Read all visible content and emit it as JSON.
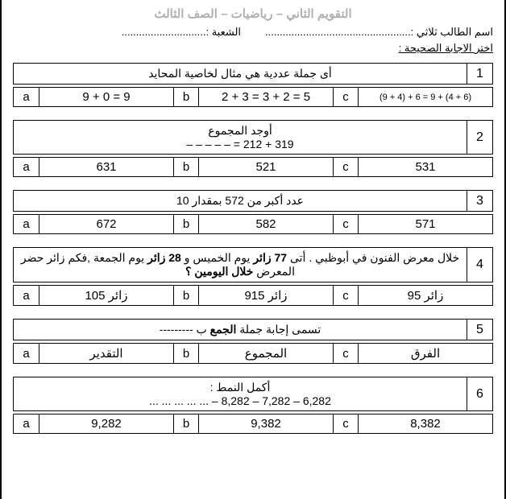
{
  "header": {
    "title": "التقويم الثاني – رياضيات – الصف الثالث",
    "student_label": "اسم الطالب ثلاثي :",
    "student_dots": "..................................................",
    "section_label": "الشعبة :",
    "section_dots": ".............................",
    "instruction": "اختر الاجابة الصحيحة :"
  },
  "questions": [
    {
      "num": "1",
      "text": "أى جملة عددية هي مثال لخاصية المحايد",
      "a": "9 + 0 = 9",
      "b": "2 + 3 = 3 + 2 = 5",
      "c": "(9 + 4) + 6 = 9 + (4 + 6)",
      "c_small": true
    },
    {
      "num": "2",
      "text": "أوجد المجموع<br>319 + 212 = – – – – –",
      "a": "631",
      "b": "521",
      "c": "531"
    },
    {
      "num": "3",
      "text": "عدد أكبر من 572 بمقدار 10",
      "a": "672",
      "b": "582",
      "c": "571"
    },
    {
      "num": "4",
      "text": "خلال معرض الفنون في أبوظبي . أتى <b>77 زائر</b> يوم الخميس و <b>28 زائر</b> يوم الجمعة ,فكم زائر حضر المعرض <b>خلال اليومين ؟</b>",
      "a": "105 زائر",
      "b": "915 زائر",
      "c": "95 زائر"
    },
    {
      "num": "5",
      "text": "تسمى إجابة جملة <b>الجمع</b> ب ---------",
      "a": "التقدير",
      "b": "المجموع",
      "c": "الفرق"
    },
    {
      "num": "6",
      "text": "أكمل النمط :<br>6,282  –  7,282  –  8,282  – ... ... ... ... ...",
      "a": "9,282",
      "b": "9,382",
      "c": "8,382"
    }
  ]
}
